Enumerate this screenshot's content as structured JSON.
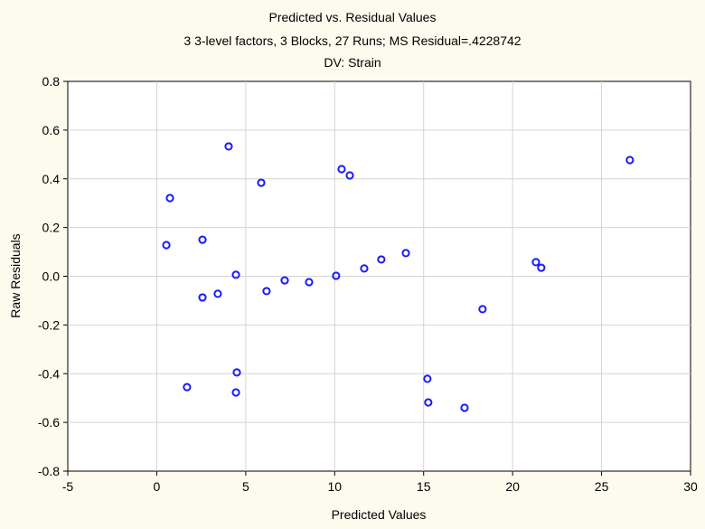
{
  "chart_data": {
    "type": "scatter",
    "title": "Predicted vs. Residual Values",
    "subtitle": "3 3-level factors, 3 Blocks, 27 Runs; MS Residual=.4228742",
    "subtitle2": "DV: Strain",
    "xlabel": "Predicted Values",
    "ylabel": "Raw Residuals",
    "xlim": [
      -5,
      30
    ],
    "ylim": [
      -0.8,
      0.8
    ],
    "xticks": [
      "-5",
      "0",
      "5",
      "10",
      "15",
      "20",
      "25",
      "30"
    ],
    "yticks": [
      "-0.8",
      "-0.6",
      "-0.4",
      "-0.2",
      "0.0",
      "0.2",
      "0.4",
      "0.6",
      "0.8"
    ],
    "grid": true,
    "marker": "open-circle",
    "marker_color": "#1a1aff",
    "points": [
      [
        0.54,
        0.128
      ],
      [
        0.74,
        0.321
      ],
      [
        1.7,
        -0.455
      ],
      [
        2.57,
        0.15
      ],
      [
        2.57,
        -0.087
      ],
      [
        3.43,
        -0.072
      ],
      [
        4.04,
        0.533
      ],
      [
        4.45,
        0.006
      ],
      [
        4.5,
        -0.395
      ],
      [
        4.45,
        -0.477
      ],
      [
        5.87,
        0.384
      ],
      [
        6.17,
        -0.061
      ],
      [
        7.19,
        -0.017
      ],
      [
        8.56,
        -0.024
      ],
      [
        10.08,
        0.002
      ],
      [
        10.39,
        0.44
      ],
      [
        10.85,
        0.414
      ],
      [
        11.66,
        0.032
      ],
      [
        12.62,
        0.069
      ],
      [
        14.0,
        0.095
      ],
      [
        15.21,
        -0.421
      ],
      [
        15.26,
        -0.518
      ],
      [
        17.3,
        -0.54
      ],
      [
        18.31,
        -0.135
      ],
      [
        21.31,
        0.058
      ],
      [
        21.61,
        0.035
      ],
      [
        26.59,
        0.477
      ]
    ]
  }
}
